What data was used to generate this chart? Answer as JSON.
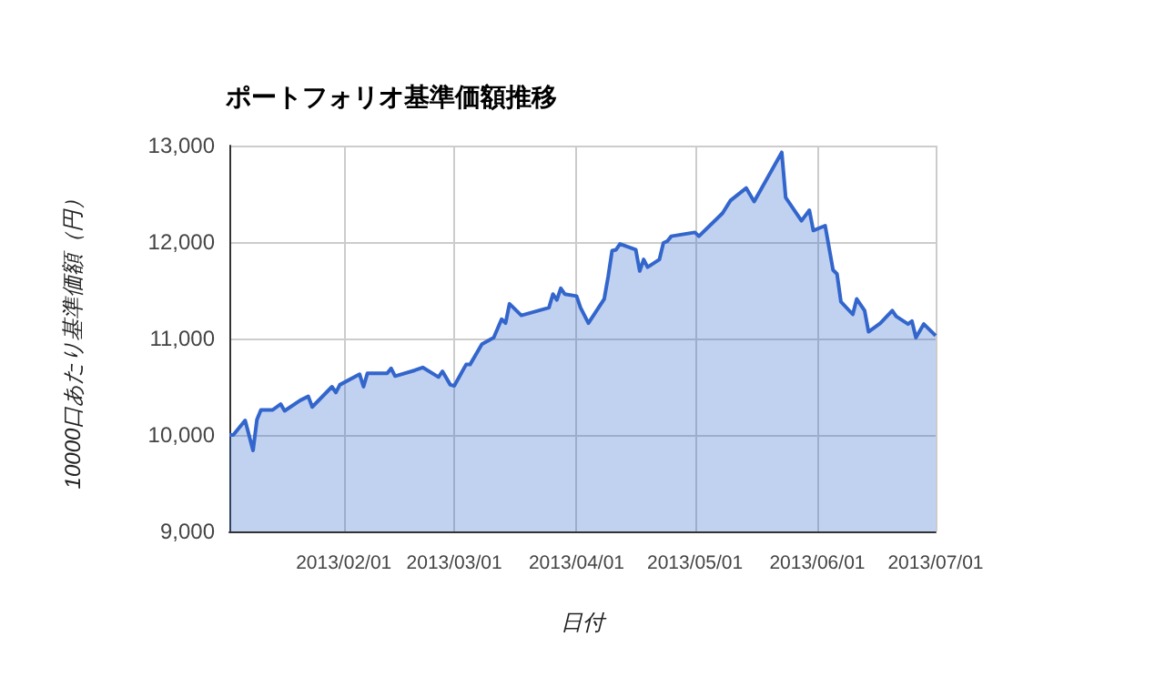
{
  "chart_data": {
    "type": "area",
    "title": "ポートフォリオ基準価額推移",
    "xlabel": "日付",
    "ylabel": "10000口あたり基準価額（円）",
    "x": [
      "2013-01-03",
      "2013-01-04",
      "2013-01-07",
      "2013-01-09",
      "2013-01-10",
      "2013-01-11",
      "2013-01-14",
      "2013-01-15",
      "2013-01-16",
      "2013-01-17",
      "2013-01-21",
      "2013-01-23",
      "2013-01-24",
      "2013-01-29",
      "2013-01-30",
      "2013-01-31",
      "2013-02-05",
      "2013-02-06",
      "2013-02-07",
      "2013-02-12",
      "2013-02-13",
      "2013-02-14",
      "2013-02-19",
      "2013-02-21",
      "2013-02-25",
      "2013-02-26",
      "2013-02-28",
      "2013-03-01",
      "2013-03-04",
      "2013-03-05",
      "2013-03-08",
      "2013-03-11",
      "2013-03-13",
      "2013-03-14",
      "2013-03-15",
      "2013-03-18",
      "2013-03-25",
      "2013-03-26",
      "2013-03-27",
      "2013-03-28",
      "2013-03-29",
      "2013-04-01",
      "2013-04-02",
      "2013-04-04",
      "2013-04-08",
      "2013-04-09",
      "2013-04-10",
      "2013-04-11",
      "2013-04-12",
      "2013-04-16",
      "2013-04-17",
      "2013-04-18",
      "2013-04-19",
      "2013-04-22",
      "2013-04-23",
      "2013-04-24",
      "2013-04-25",
      "2013-05-01",
      "2013-05-02",
      "2013-05-08",
      "2013-05-10",
      "2013-05-14",
      "2013-05-16",
      "2013-05-23",
      "2013-05-24",
      "2013-05-28",
      "2013-05-30",
      "2013-05-31",
      "2013-06-03",
      "2013-06-05",
      "2013-06-06",
      "2013-06-07",
      "2013-06-10",
      "2013-06-11",
      "2013-06-13",
      "2013-06-14",
      "2013-06-17",
      "2013-06-20",
      "2013-06-21",
      "2013-06-24",
      "2013-06-25",
      "2013-06-26",
      "2013-06-28",
      "2013-07-01"
    ],
    "series": [
      {
        "color": "#3366cc",
        "values": [
          10000,
          10000,
          10150,
          9840,
          10160,
          10260,
          10260,
          10290,
          10320,
          10250,
          10360,
          10400,
          10290,
          10500,
          10440,
          10520,
          10630,
          10500,
          10640,
          10640,
          10690,
          10610,
          10670,
          10700,
          10600,
          10660,
          10520,
          10510,
          10730,
          10730,
          10940,
          11010,
          11200,
          11160,
          11360,
          11240,
          11320,
          11460,
          11400,
          11520,
          11460,
          11440,
          11320,
          11160,
          11410,
          11640,
          11910,
          11920,
          11980,
          11920,
          11700,
          11820,
          11740,
          11820,
          11990,
          12010,
          12060,
          12100,
          12060,
          12300,
          12430,
          12560,
          12420,
          12930,
          12460,
          12220,
          12330,
          12120,
          12170,
          11710,
          11670,
          11380,
          11250,
          11410,
          11290,
          11070,
          11160,
          11290,
          11230,
          11150,
          11180,
          11010,
          11150,
          11030
        ]
      }
    ],
    "xlim": [
      "2013-01-03",
      "2013-07-01"
    ],
    "xticks": [
      {
        "value": "2013-02-01",
        "label": "2013/02/01"
      },
      {
        "value": "2013-03-01",
        "label": "2013/03/01"
      },
      {
        "value": "2013-04-01",
        "label": "2013/04/01"
      },
      {
        "value": "2013-05-01",
        "label": "2013/05/01"
      },
      {
        "value": "2013-06-01",
        "label": "2013/06/01"
      },
      {
        "value": "2013-07-01",
        "label": "2013/07/01"
      }
    ],
    "ylim": [
      9000,
      13000
    ],
    "yticks": [
      {
        "value": 9000,
        "label": "9,000"
      },
      {
        "value": 10000,
        "label": "10,000"
      },
      {
        "value": 11000,
        "label": "11,000"
      },
      {
        "value": 12000,
        "label": "12,000"
      },
      {
        "value": 13000,
        "label": "13,000"
      }
    ],
    "grid": true
  }
}
